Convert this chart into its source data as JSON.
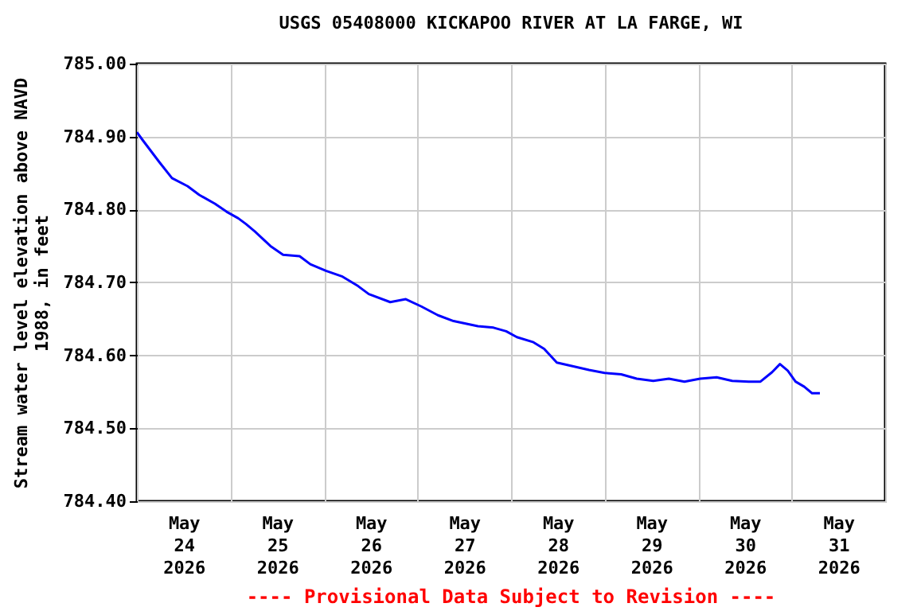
{
  "chart_data": {
    "type": "line",
    "title": "USGS 05408000 KICKAPOO RIVER AT LA FARGE, WI",
    "ylabel": "Stream water level elevation above NAVD 1988, in feet",
    "annotations": [
      "---- Provisional Data Subject to Revision ----"
    ],
    "x": [
      "2026-05-24T00:00",
      "2026-05-24T01:30",
      "2026-05-24T05:45",
      "2026-05-24T09:00",
      "2026-05-24T13:00",
      "2026-05-24T16:00",
      "2026-05-24T20:00",
      "2026-05-24T23:00",
      "2026-05-25T02:00",
      "2026-05-25T04:00",
      "2026-05-25T06:15",
      "2026-05-25T10:15",
      "2026-05-25T13:30",
      "2026-05-25T17:45",
      "2026-05-25T20:30",
      "2026-05-26T00:30",
      "2026-05-26T04:45",
      "2026-05-26T08:45",
      "2026-05-26T11:30",
      "2026-05-26T17:00",
      "2026-05-26T21:00",
      "2026-05-27T01:00",
      "2026-05-27T05:15",
      "2026-05-27T09:15",
      "2026-05-27T15:30",
      "2026-05-27T19:30",
      "2026-05-27T22:45",
      "2026-05-28T01:30",
      "2026-05-28T05:45",
      "2026-05-28T08:30",
      "2026-05-28T11:45",
      "2026-05-28T16:00",
      "2026-05-28T20:00",
      "2026-05-29T00:00",
      "2026-05-29T04:15",
      "2026-05-29T08:15",
      "2026-05-29T12:30",
      "2026-05-29T16:30",
      "2026-05-29T20:30",
      "2026-05-30T00:30",
      "2026-05-30T04:45",
      "2026-05-30T08:45",
      "2026-05-30T13:00",
      "2026-05-30T16:00",
      "2026-05-30T19:00",
      "2026-05-30T21:00",
      "2026-05-30T23:00",
      "2026-05-31T01:00",
      "2026-05-31T03:15",
      "2026-05-31T05:15",
      "2026-05-31T07:15"
    ],
    "series": [
      {
        "color": "#0000ff",
        "values": [
          784.906,
          784.895,
          784.865,
          784.843,
          784.832,
          784.82,
          784.808,
          784.797,
          784.788,
          784.78,
          784.77,
          784.75,
          784.738,
          784.736,
          784.725,
          784.716,
          784.708,
          784.695,
          784.684,
          784.673,
          784.677,
          784.667,
          784.655,
          784.647,
          784.64,
          784.638,
          784.633,
          784.625,
          784.618,
          784.609,
          784.59,
          784.585,
          784.58,
          784.576,
          784.574,
          784.568,
          784.565,
          784.568,
          784.564,
          784.568,
          784.57,
          784.565,
          784.564,
          784.564,
          784.577,
          784.588,
          784.579,
          784.564,
          784.557,
          784.548,
          784.548
        ]
      }
    ],
    "xlim": [
      "2026-05-24T00:00",
      "2026-06-01T00:00"
    ],
    "xticks": [
      {
        "value": "2026-05-24T00:00",
        "label": null
      },
      {
        "value": "2026-05-24T12:00",
        "label": "May 24 2026"
      },
      {
        "value": "2026-05-25T00:00",
        "label": null
      },
      {
        "value": "2026-05-25T12:00",
        "label": "May 25 2026"
      },
      {
        "value": "2026-05-26T00:00",
        "label": null
      },
      {
        "value": "2026-05-26T12:00",
        "label": "May 26 2026"
      },
      {
        "value": "2026-05-27T00:00",
        "label": null
      },
      {
        "value": "2026-05-27T12:00",
        "label": "May 27 2026"
      },
      {
        "value": "2026-05-28T00:00",
        "label": null
      },
      {
        "value": "2026-05-28T12:00",
        "label": "May 28 2026"
      },
      {
        "value": "2026-05-29T00:00",
        "label": null
      },
      {
        "value": "2026-05-29T12:00",
        "label": "May 29 2026"
      },
      {
        "value": "2026-05-30T00:00",
        "label": null
      },
      {
        "value": "2026-05-30T12:00",
        "label": "May 30 2026"
      },
      {
        "value": "2026-05-31T00:00",
        "label": null
      },
      {
        "value": "2026-05-31T12:00",
        "label": "May 31 2026"
      },
      {
        "value": "2026-06-01T00:00",
        "label": null
      }
    ],
    "ylim": [
      784.4,
      785.0
    ],
    "yticks": [
      {
        "value": 784.4,
        "label": "784.40"
      },
      {
        "value": 784.5,
        "label": "784.50"
      },
      {
        "value": 784.6,
        "label": "784.60"
      },
      {
        "value": 784.7,
        "label": "784.70"
      },
      {
        "value": 784.8,
        "label": "784.80"
      },
      {
        "value": 784.9,
        "label": "784.90"
      },
      {
        "value": 785.0,
        "label": "785.00"
      }
    ],
    "grid": true,
    "line_style": "solid"
  }
}
